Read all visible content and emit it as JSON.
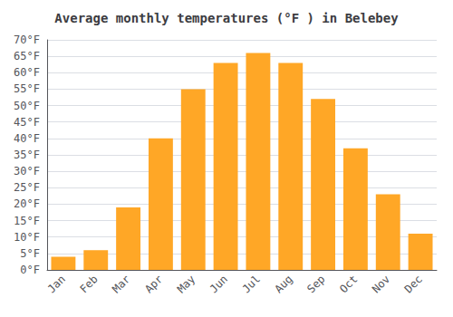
{
  "chart_data": {
    "type": "bar",
    "title": "Average monthly temperatures (°F ) in Belebey",
    "categories": [
      "Jan",
      "Feb",
      "Mar",
      "Apr",
      "May",
      "Jun",
      "Jul",
      "Aug",
      "Sep",
      "Oct",
      "Nov",
      "Dec"
    ],
    "values": [
      4,
      6,
      19,
      40,
      55,
      63,
      66,
      63,
      52,
      37,
      23,
      11
    ],
    "color": "#FFA726",
    "ylim": [
      0,
      70
    ],
    "yticks": [
      {
        "value": 0,
        "label": "0°F"
      },
      {
        "value": 5,
        "label": "5°F"
      },
      {
        "value": 10,
        "label": "10°F"
      },
      {
        "value": 15,
        "label": "15°F"
      },
      {
        "value": 20,
        "label": "20°F"
      },
      {
        "value": 25,
        "label": "25°F"
      },
      {
        "value": 30,
        "label": "30°F"
      },
      {
        "value": 35,
        "label": "35°F"
      },
      {
        "value": 40,
        "label": "40°F"
      },
      {
        "value": 45,
        "label": "45°F"
      },
      {
        "value": 50,
        "label": "50°F"
      },
      {
        "value": 55,
        "label": "55°F"
      },
      {
        "value": 60,
        "label": "60°F"
      },
      {
        "value": 65,
        "label": "65°F"
      },
      {
        "value": 70,
        "label": "70°F"
      }
    ],
    "grid": true
  }
}
